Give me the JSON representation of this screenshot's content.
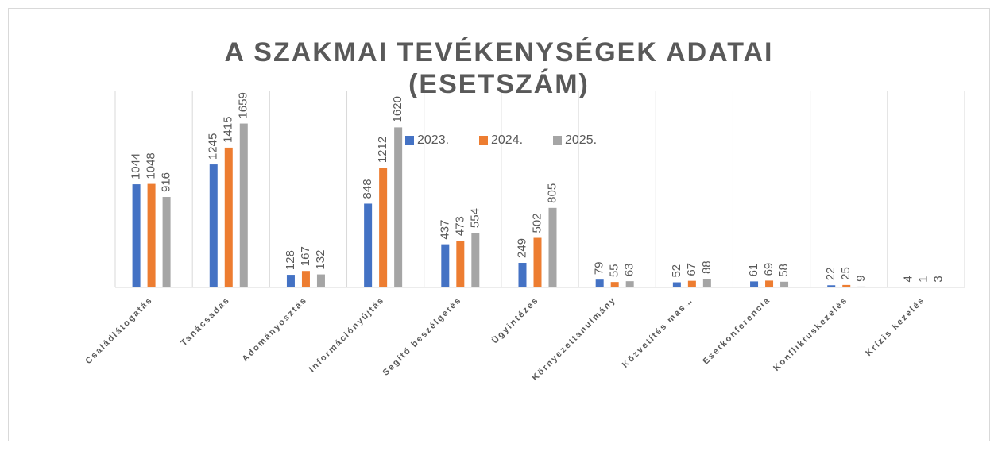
{
  "chart_data": {
    "type": "bar",
    "title": "A SZAKMAI TEVÉKENYSÉGEK ADATAI (ESETSZÁM)",
    "categories": [
      "Családlátogatás",
      "Tanácsadás",
      "Adományosztás",
      "Információnyújtás",
      "Segítő beszélgetés",
      "Ügyintézés",
      "Környezettanulmány",
      "Közvetítés más…",
      "Esetkonferencia",
      "Konfliktuskezelés",
      "Krízis kezelés"
    ],
    "series": [
      {
        "name": "2023.",
        "color": "#4472c4",
        "values": [
          1044,
          1245,
          128,
          848,
          437,
          249,
          79,
          52,
          61,
          22,
          4
        ]
      },
      {
        "name": "2024.",
        "color": "#ed7d31",
        "values": [
          1048,
          1415,
          167,
          1212,
          473,
          502,
          55,
          67,
          69,
          25,
          1
        ]
      },
      {
        "name": "2025.",
        "color": "#a5a5a5",
        "values": [
          916,
          1659,
          132,
          1620,
          554,
          805,
          63,
          88,
          58,
          9,
          3
        ]
      }
    ],
    "ylim": [
      0,
      1800
    ]
  }
}
